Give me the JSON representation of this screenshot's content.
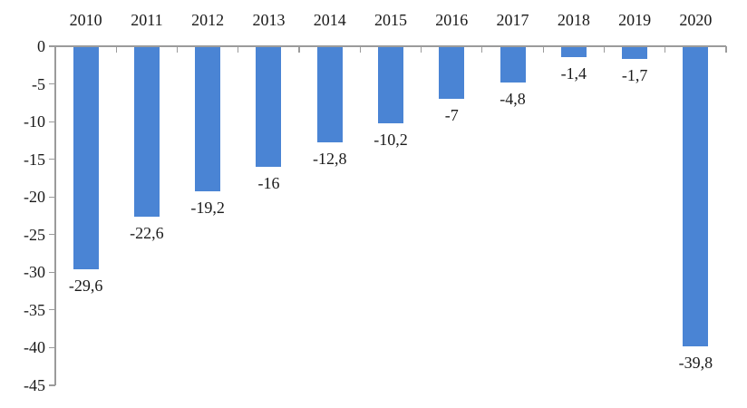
{
  "chart_data": {
    "type": "bar",
    "categories": [
      "2010",
      "2011",
      "2012",
      "2013",
      "2014",
      "2015",
      "2016",
      "2017",
      "2018",
      "2019",
      "2020"
    ],
    "values": [
      -29.6,
      -22.6,
      -19.2,
      -16,
      -12.8,
      -10.2,
      -7,
      -4.8,
      -1.4,
      -1.7,
      -39.8
    ],
    "data_labels": [
      "-29,6",
      "-22,6",
      "-19,2",
      "-16",
      "-12,8",
      "-10,2",
      "-7",
      "-4,8",
      "-1,4",
      "-1,7",
      "-39,8"
    ],
    "title": "",
    "xlabel": "",
    "ylabel": "",
    "ylim": [
      -45,
      0
    ],
    "y_tick_values": [
      0,
      -5,
      -10,
      -15,
      -20,
      -25,
      -30,
      -35,
      -40,
      -45
    ],
    "y_tick_labels": [
      "0",
      "-5",
      "-10",
      "-15",
      "-20",
      "-25",
      "-30",
      "-35",
      "-40",
      "-45"
    ],
    "grid": false,
    "legend": false,
    "decimal_separator": ",",
    "bar_color": "#4a84d4",
    "axis_color": "#9b9b9b",
    "text_color": "#1a1a1a"
  }
}
